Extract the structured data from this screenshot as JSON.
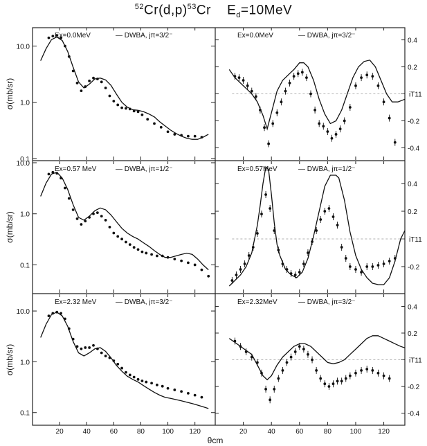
{
  "title": {
    "reaction": "Cr(d,p)",
    "target_mass": "52",
    "product_mass": "53",
    "product": "Cr",
    "energy": "E",
    "energy_sub": "d",
    "energy_value": "=10MeV"
  },
  "x_axis": {
    "label": "θcm",
    "ticks": [
      "20",
      "40",
      "60",
      "80",
      "100",
      "120"
    ]
  },
  "left_axis": {
    "label": "σ(mb/sr)",
    "ticks": [
      "10.0",
      "1.0",
      "0.1"
    ]
  },
  "right_axis": {
    "label": "iT11",
    "ticks": [
      "0.4",
      "0.2",
      "0",
      "-0.2",
      "-0.4"
    ]
  },
  "chart_data": [
    {
      "type": "line",
      "panel": "top-left",
      "log_y": true,
      "ylim": [
        0.1,
        20
      ],
      "xlim": [
        0,
        135
      ],
      "annotation": "Ex=0.0MeV — DWBA, jπ=3/2⁻",
      "ex_label": "Ex=0.0MeV",
      "dwba_label": "DWBA, jπ=3/2⁻",
      "series": [
        {
          "x": [
            6,
            10,
            14,
            18,
            22,
            26,
            30,
            34,
            38,
            42,
            46,
            50,
            54,
            58,
            62,
            66,
            70,
            74,
            78,
            82,
            86,
            90,
            94,
            98,
            102,
            106,
            110,
            114,
            118,
            122,
            126,
            130
          ],
          "values": [
            5.5,
            9.0,
            13.0,
            14.5,
            12.5,
            8.0,
            4.2,
            2.3,
            1.8,
            2.1,
            2.6,
            2.7,
            2.5,
            2.0,
            1.4,
            1.0,
            0.82,
            0.74,
            0.72,
            0.68,
            0.62,
            0.55,
            0.45,
            0.38,
            0.32,
            0.28,
            0.25,
            0.23,
            0.22,
            0.22,
            0.24,
            0.27
          ]
        },
        {
          "x": [
            12,
            15,
            18,
            21,
            24,
            27,
            30,
            33,
            36,
            39,
            42,
            45,
            48,
            51,
            54,
            57,
            60,
            63,
            66,
            69,
            72,
            75,
            78,
            81,
            85,
            90,
            95,
            100,
            105,
            110,
            115,
            120,
            125
          ],
          "values": [
            14,
            15,
            15.5,
            14,
            10,
            6.5,
            3.6,
            2.2,
            1.6,
            1.9,
            2.4,
            2.7,
            2.6,
            2.3,
            1.8,
            1.3,
            1.05,
            0.9,
            0.8,
            0.78,
            0.76,
            0.7,
            0.68,
            0.6,
            0.5,
            0.42,
            0.36,
            0.3,
            0.27,
            0.26,
            0.25,
            0.25,
            0.24
          ]
        }
      ]
    },
    {
      "type": "line",
      "panel": "top-right",
      "log_y": false,
      "ylim": [
        -0.48,
        0.48
      ],
      "xlim": [
        0,
        135
      ],
      "annotation": "Ex=0.0MeV — DWBA, jπ=3/2⁻",
      "ex_label": "Ex=0.0MeV",
      "dwba_label": "DWBA, jπ=3/2⁻",
      "series": [
        {
          "x": [
            10,
            14,
            18,
            22,
            26,
            30,
            34,
            37,
            40,
            44,
            48,
            52,
            56,
            60,
            63,
            66,
            70,
            74,
            78,
            82,
            86,
            90,
            94,
            98,
            102,
            106,
            110,
            114,
            118,
            122,
            126,
            130,
            135
          ],
          "values": [
            0.18,
            0.12,
            0.08,
            0.04,
            0.0,
            -0.06,
            -0.16,
            -0.26,
            -0.14,
            0.02,
            0.1,
            0.14,
            0.18,
            0.23,
            0.23,
            0.2,
            0.1,
            -0.04,
            -0.15,
            -0.22,
            -0.2,
            -0.12,
            0.0,
            0.12,
            0.2,
            0.24,
            0.25,
            0.2,
            0.1,
            0.0,
            -0.06,
            -0.06,
            -0.04
          ]
        },
        {
          "x": [
            14,
            17,
            20,
            23,
            26,
            29,
            32,
            35,
            38,
            41,
            44,
            47,
            50,
            53,
            56,
            59,
            62,
            65,
            68,
            71,
            74,
            77,
            80,
            83,
            86,
            89,
            92,
            96,
            100,
            104,
            108,
            112,
            116,
            120,
            124,
            128
          ],
          "values": [
            0.13,
            0.12,
            0.1,
            0.06,
            0.02,
            -0.02,
            -0.12,
            -0.25,
            -0.37,
            -0.22,
            -0.14,
            -0.06,
            0.02,
            0.08,
            0.13,
            0.15,
            0.16,
            0.12,
            0.0,
            -0.12,
            -0.22,
            -0.24,
            -0.28,
            -0.33,
            -0.3,
            -0.26,
            -0.2,
            -0.1,
            0.06,
            0.12,
            0.14,
            0.13,
            0.06,
            -0.06,
            -0.18,
            -0.36
          ]
        }
      ]
    },
    {
      "type": "line",
      "panel": "middle-left",
      "log_y": true,
      "ylim": [
        0.03,
        10
      ],
      "xlim": [
        0,
        135
      ],
      "annotation": "Ex=0.57 MeV — DWBA, jπ=1/2⁻",
      "ex_label": "Ex=0.57 MeV",
      "dwba_label": "DWBA, jπ=1/2⁻",
      "series": [
        {
          "x": [
            6,
            10,
            14,
            18,
            22,
            26,
            30,
            34,
            38,
            42,
            46,
            50,
            54,
            58,
            62,
            66,
            70,
            74,
            78,
            82,
            86,
            90,
            94,
            98,
            102,
            106,
            110,
            114,
            118,
            122,
            126,
            130
          ],
          "values": [
            2.2,
            4.0,
            6.0,
            6.5,
            5.0,
            3.0,
            1.5,
            0.85,
            0.75,
            0.9,
            1.15,
            1.3,
            1.2,
            0.95,
            0.7,
            0.52,
            0.42,
            0.36,
            0.32,
            0.27,
            0.23,
            0.19,
            0.16,
            0.14,
            0.14,
            0.15,
            0.16,
            0.17,
            0.16,
            0.13,
            0.1,
            0.08
          ]
        },
        {
          "x": [
            12,
            15,
            18,
            21,
            24,
            27,
            30,
            33,
            36,
            39,
            42,
            45,
            48,
            51,
            54,
            57,
            60,
            63,
            66,
            69,
            72,
            75,
            78,
            81,
            84,
            88,
            92,
            96,
            100,
            105,
            110,
            115,
            120,
            125,
            130
          ],
          "values": [
            6.0,
            6.5,
            6.2,
            5.0,
            3.2,
            2.0,
            1.2,
            0.8,
            0.62,
            0.72,
            0.85,
            1.0,
            1.05,
            0.9,
            0.75,
            0.55,
            0.42,
            0.36,
            0.32,
            0.28,
            0.25,
            0.22,
            0.2,
            0.18,
            0.17,
            0.16,
            0.15,
            0.15,
            0.14,
            0.13,
            0.12,
            0.11,
            0.1,
            0.08,
            0.06
          ]
        }
      ]
    },
    {
      "type": "line",
      "panel": "middle-right",
      "log_y": false,
      "ylim": [
        -0.38,
        0.55
      ],
      "xlim": [
        0,
        135
      ],
      "annotation": "Ex=0.57MeV — DWBA, jπ=1/2⁻",
      "ex_label": "Ex=0.57MeV",
      "dwba_label": "DWBA, jπ=1/2⁻",
      "series": [
        {
          "x": [
            10,
            14,
            18,
            22,
            26,
            30,
            32,
            34,
            36,
            38,
            40,
            42,
            44,
            46,
            50,
            54,
            58,
            62,
            66,
            70,
            74,
            78,
            82,
            86,
            88,
            92,
            96,
            100,
            104,
            108,
            112,
            116,
            120,
            124,
            128,
            132,
            135
          ],
          "values": [
            -0.34,
            -0.3,
            -0.26,
            -0.2,
            -0.1,
            0.1,
            0.24,
            0.4,
            0.52,
            0.5,
            0.32,
            0.12,
            -0.04,
            -0.12,
            -0.22,
            -0.26,
            -0.28,
            -0.24,
            -0.14,
            0.02,
            0.2,
            0.38,
            0.46,
            0.46,
            0.44,
            0.28,
            0.05,
            -0.12,
            -0.22,
            -0.28,
            -0.32,
            -0.33,
            -0.33,
            -0.28,
            -0.16,
            0.0,
            0.06
          ]
        },
        {
          "x": [
            12,
            15,
            18,
            21,
            24,
            27,
            30,
            33,
            36,
            39,
            42,
            45,
            48,
            51,
            54,
            57,
            60,
            63,
            66,
            69,
            72,
            75,
            78,
            81,
            84,
            87,
            90,
            93,
            96,
            100,
            104,
            108,
            112,
            116,
            120,
            124,
            128
          ],
          "values": [
            -0.3,
            -0.26,
            -0.22,
            -0.18,
            -0.12,
            -0.06,
            0.04,
            0.18,
            0.32,
            0.22,
            0.06,
            -0.08,
            -0.18,
            -0.22,
            -0.25,
            -0.26,
            -0.24,
            -0.18,
            -0.1,
            -0.02,
            0.06,
            0.14,
            0.2,
            0.22,
            0.16,
            0.1,
            -0.06,
            -0.14,
            -0.2,
            -0.22,
            -0.24,
            -0.2,
            -0.2,
            -0.19,
            -0.18,
            -0.16,
            -0.14
          ]
        }
      ]
    },
    {
      "type": "line",
      "panel": "bottom-left",
      "log_y": true,
      "ylim": [
        0.06,
        20
      ],
      "xlim": [
        0,
        135
      ],
      "annotation": "Ex=2.32 MeV — DWBA, jπ=3/2⁻",
      "ex_label": "Ex=2.32 MeV",
      "dwba_label": "DWBA, jπ=3/2⁻",
      "series": [
        {
          "x": [
            6,
            10,
            14,
            18,
            22,
            26,
            30,
            34,
            38,
            42,
            46,
            50,
            54,
            58,
            62,
            66,
            70,
            74,
            78,
            82,
            86,
            90,
            94,
            98,
            102,
            106,
            110,
            114,
            118,
            122,
            126,
            130
          ],
          "values": [
            3.0,
            5.5,
            8.5,
            9.5,
            8.0,
            5.0,
            2.5,
            1.5,
            1.3,
            1.5,
            1.8,
            1.9,
            1.6,
            1.2,
            0.85,
            0.65,
            0.52,
            0.45,
            0.4,
            0.34,
            0.29,
            0.25,
            0.22,
            0.2,
            0.19,
            0.18,
            0.17,
            0.16,
            0.15,
            0.14,
            0.13,
            0.12
          ]
        },
        {
          "x": [
            12,
            15,
            18,
            21,
            24,
            27,
            30,
            33,
            36,
            39,
            42,
            45,
            48,
            51,
            54,
            57,
            60,
            63,
            66,
            69,
            72,
            75,
            78,
            81,
            84,
            88,
            92,
            96,
            100,
            105,
            110,
            115,
            120,
            125
          ],
          "values": [
            8.0,
            9.0,
            9.5,
            9.0,
            7.0,
            4.5,
            2.8,
            2.0,
            1.8,
            1.9,
            1.9,
            2.1,
            1.8,
            1.5,
            1.3,
            1.2,
            1.05,
            0.9,
            0.75,
            0.62,
            0.55,
            0.5,
            0.45,
            0.42,
            0.4,
            0.38,
            0.35,
            0.33,
            0.3,
            0.28,
            0.26,
            0.24,
            0.22,
            0.2
          ]
        }
      ]
    },
    {
      "type": "line",
      "panel": "bottom-right",
      "log_y": false,
      "ylim": [
        -0.48,
        0.48
      ],
      "xlim": [
        0,
        135
      ],
      "annotation": "Ex=2.32MeV — DWBA, jπ=3/2⁻",
      "ex_label": "Ex=2.32MeV",
      "dwba_label": "DWBA, jπ=3/2⁻",
      "series": [
        {
          "x": [
            10,
            14,
            18,
            22,
            26,
            30,
            34,
            37,
            40,
            44,
            48,
            52,
            56,
            60,
            64,
            68,
            72,
            76,
            80,
            84,
            88,
            92,
            96,
            100,
            104,
            108,
            112,
            116,
            120,
            124,
            128,
            132,
            135
          ],
          "values": [
            0.16,
            0.13,
            0.1,
            0.07,
            0.04,
            -0.04,
            -0.12,
            -0.15,
            -0.12,
            -0.04,
            0.02,
            0.06,
            0.1,
            0.12,
            0.12,
            0.1,
            0.06,
            0.02,
            -0.02,
            -0.03,
            -0.02,
            0.0,
            0.04,
            0.08,
            0.12,
            0.16,
            0.18,
            0.18,
            0.16,
            0.14,
            0.12,
            0.1,
            0.09
          ]
        },
        {
          "x": [
            14,
            18,
            22,
            26,
            30,
            33,
            36,
            39,
            42,
            45,
            48,
            51,
            54,
            57,
            60,
            63,
            66,
            69,
            72,
            75,
            78,
            81,
            84,
            87,
            90,
            93,
            96,
            100,
            104,
            108,
            112,
            116,
            120,
            124
          ],
          "values": [
            0.14,
            0.1,
            0.06,
            0.02,
            -0.02,
            -0.1,
            -0.22,
            -0.3,
            -0.22,
            -0.14,
            -0.08,
            -0.02,
            0.02,
            0.06,
            0.1,
            0.08,
            0.04,
            0.0,
            -0.08,
            -0.14,
            -0.18,
            -0.2,
            -0.18,
            -0.16,
            -0.16,
            -0.14,
            -0.12,
            -0.1,
            -0.08,
            -0.07,
            -0.08,
            -0.1,
            -0.12,
            -0.14
          ]
        }
      ]
    }
  ]
}
